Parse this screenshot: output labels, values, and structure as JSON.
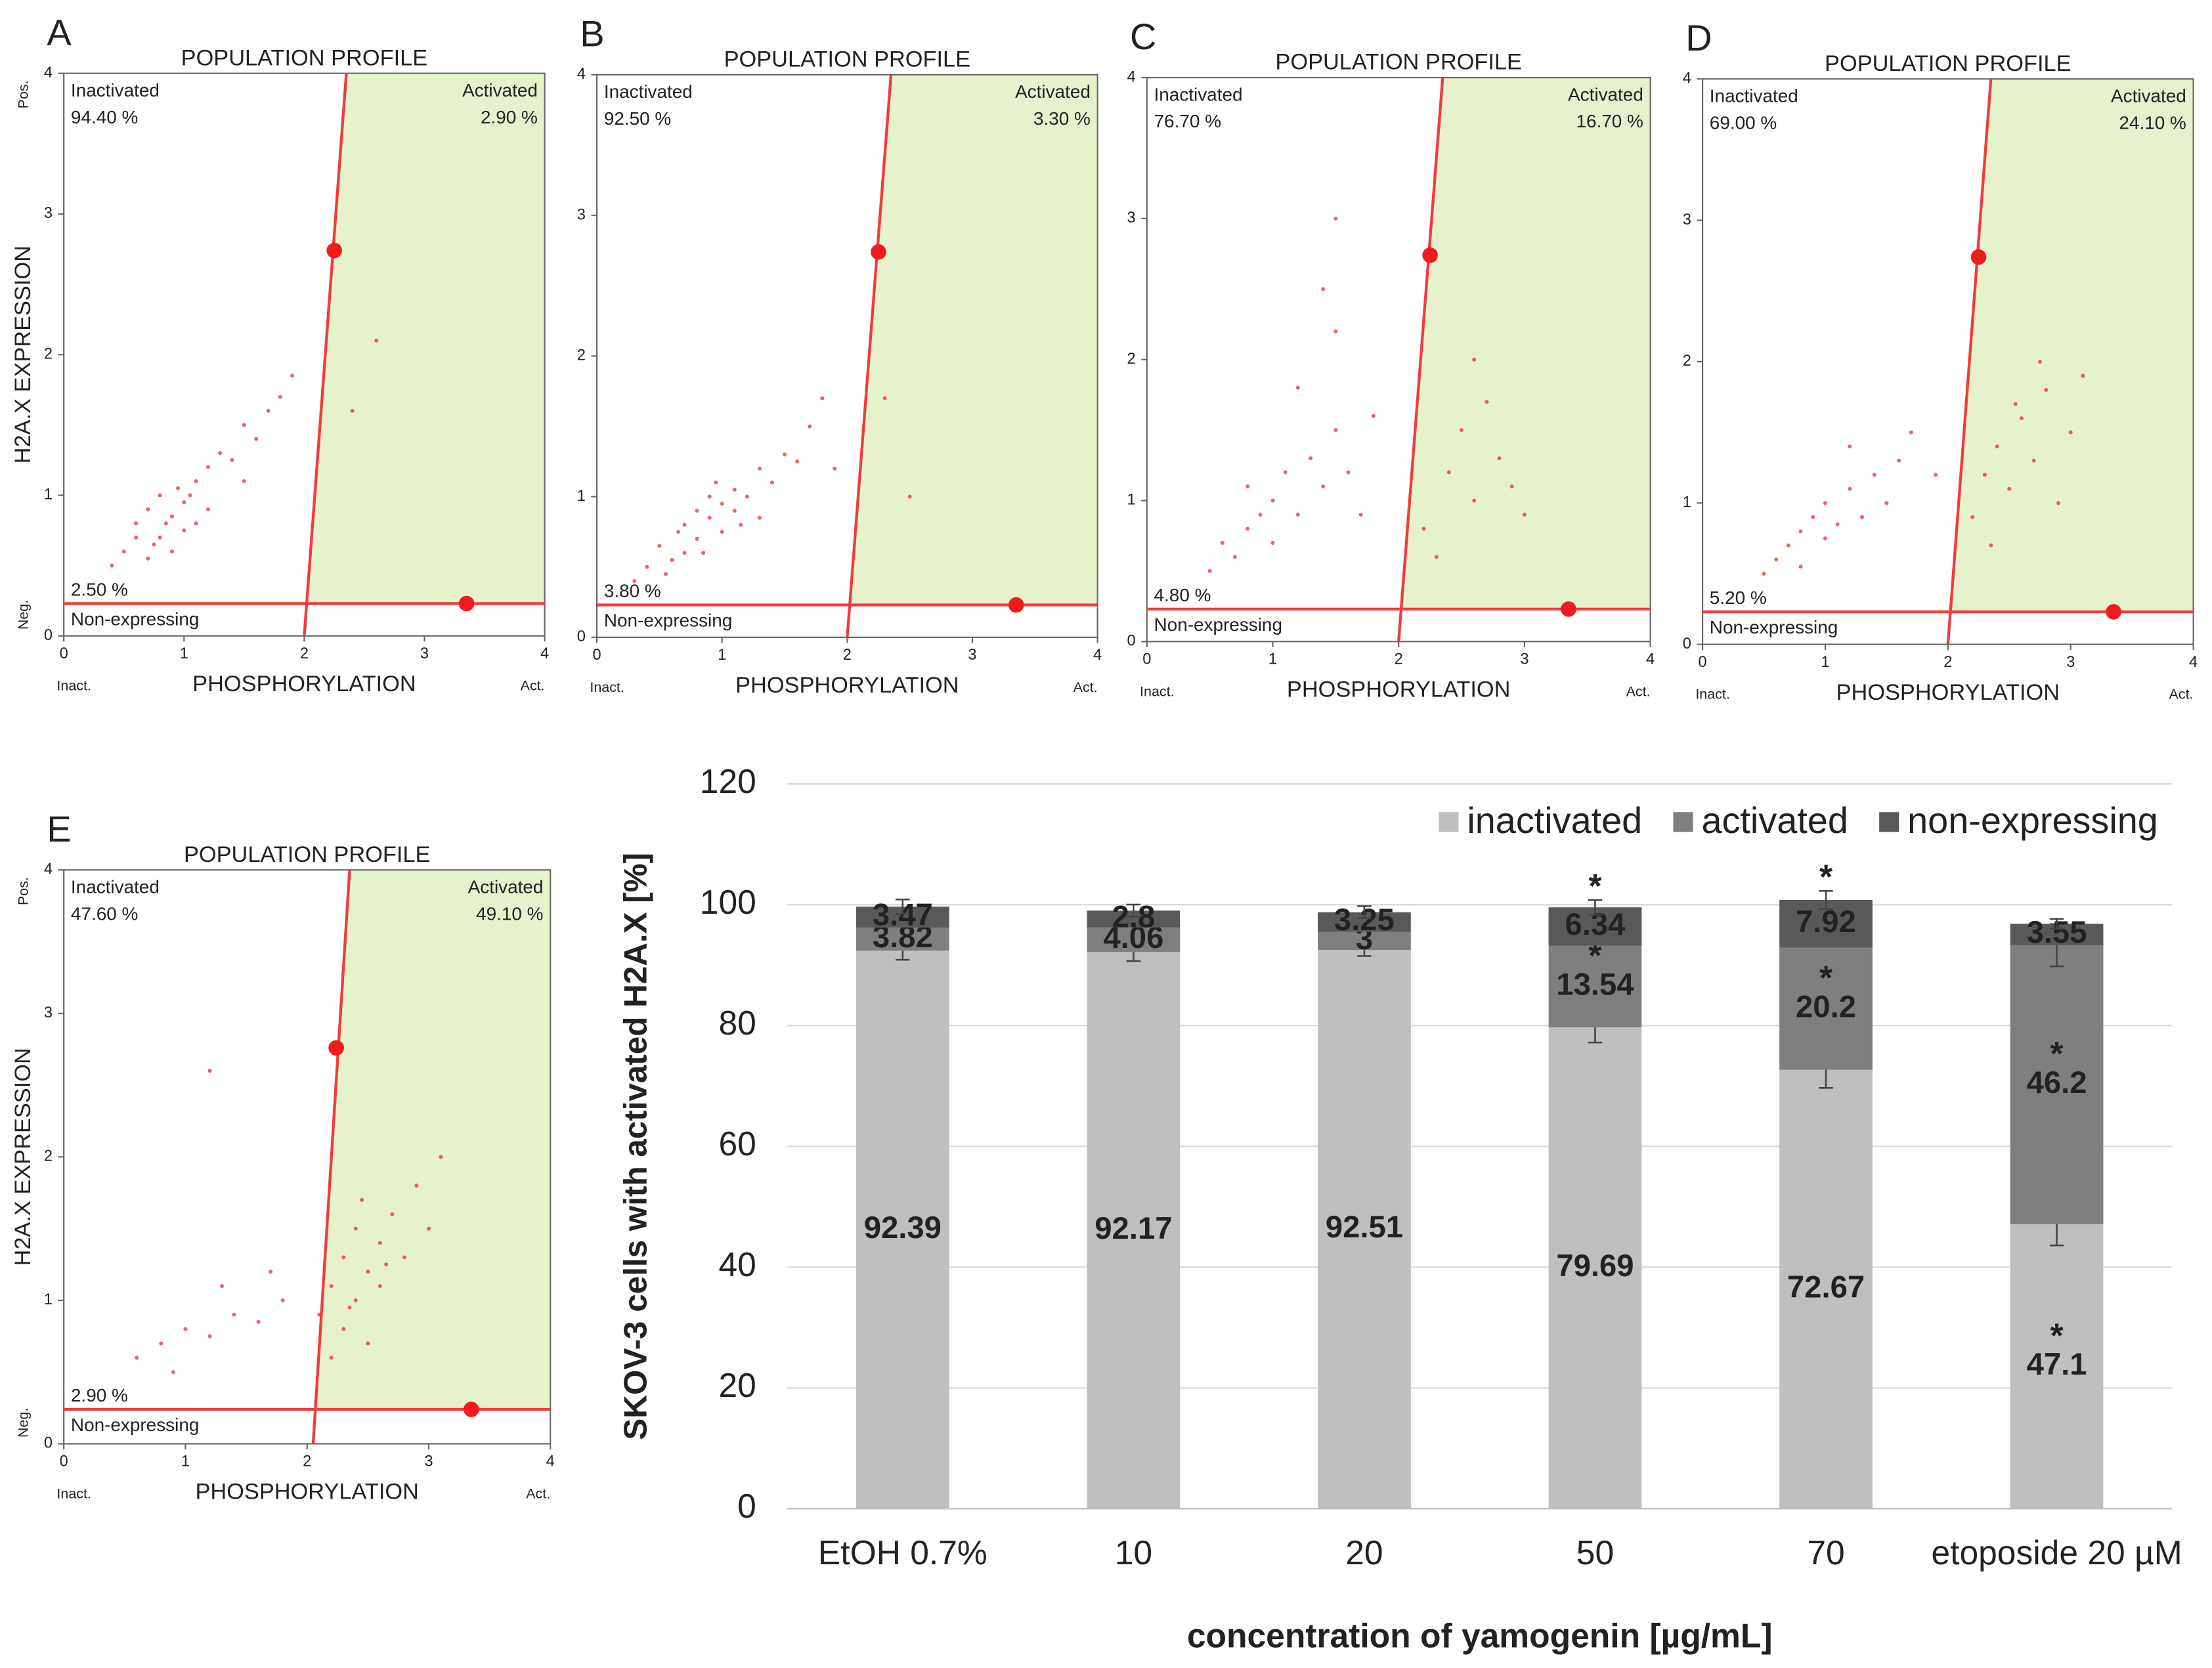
{
  "chart_data": [
    {
      "type": "scatter",
      "panel_label": "A",
      "title": "POPULATION PROFILE",
      "xlabel": "PHOSPHORYLATION",
      "ylabel": "H2A.X EXPRESSION",
      "y_top_label": "Pos.",
      "y_bottom_label": "Neg.",
      "x_left_label": "Inact.",
      "x_right_label": "Act.",
      "annotations": {
        "inactivated": "Inactivated",
        "inactivated_pct": "94.40 %",
        "activated": "Activated",
        "activated_pct": "2.90 %",
        "non_expressing_pct": "2.50 %",
        "non_expressing": "Non-expressing"
      },
      "xlim": [
        0,
        4
      ],
      "ylim": [
        0,
        4
      ],
      "xticks": [
        0,
        1,
        2,
        3,
        4
      ],
      "yticks": [
        0,
        1,
        2,
        3,
        4
      ],
      "color": "#e8202a",
      "x": [
        0.5,
        0.6,
        0.7,
        0.7,
        0.8,
        0.8,
        0.9,
        0.9,
        1.0,
        1.0,
        1.1,
        1.1,
        1.2,
        1.2,
        1.3,
        1.4,
        1.5,
        1.6,
        1.7,
        1.8,
        1.9,
        0.6,
        0.75,
        0.85,
        0.95,
        1.05,
        2.4,
        2.6,
        0.4,
        1.5
      ],
      "y": [
        0.6,
        0.8,
        0.55,
        0.9,
        0.7,
        1.0,
        0.85,
        0.6,
        0.95,
        0.75,
        1.1,
        0.8,
        1.2,
        0.9,
        1.3,
        1.25,
        1.5,
        1.4,
        1.6,
        1.7,
        1.85,
        0.7,
        0.65,
        0.8,
        1.05,
        1.0,
        1.6,
        2.1,
        0.5,
        1.1
      ],
      "gate": {
        "x": [
          2.0,
          2.35
        ],
        "y": [
          0,
          4
        ],
        "threshold": 0.23,
        "handles_x": [
          2.25,
          3.35
        ],
        "handles_y": [
          2.74,
          0.23
        ]
      },
      "gate_color": "#f03c3c",
      "region_color": "#e6f2cc"
    },
    {
      "type": "scatter",
      "panel_label": "B",
      "title": "POPULATION PROFILE",
      "xlabel": "PHOSPHORYLATION",
      "x_left_label": "Inact.",
      "x_right_label": "Act.",
      "annotations": {
        "inactivated": "Inactivated",
        "inactivated_pct": "92.50 %",
        "activated": "Activated",
        "activated_pct": "3.30 %",
        "non_expressing_pct": "3.80 %",
        "non_expressing": "Non-expressing"
      },
      "xlim": [
        0,
        4
      ],
      "ylim": [
        0,
        4
      ],
      "xticks": [
        0,
        1,
        2,
        3,
        4
      ],
      "yticks": [
        0,
        1,
        2,
        3,
        4
      ],
      "color": "#e8202a",
      "x": [
        0.4,
        0.5,
        0.6,
        0.7,
        0.7,
        0.8,
        0.8,
        0.9,
        0.9,
        1.0,
        1.0,
        1.1,
        1.1,
        1.2,
        1.3,
        1.3,
        1.4,
        1.5,
        1.6,
        1.7,
        1.8,
        0.55,
        0.65,
        0.85,
        0.95,
        1.15,
        2.5,
        2.3,
        1.9,
        0.3
      ],
      "y": [
        0.5,
        0.65,
        0.55,
        0.8,
        0.6,
        0.9,
        0.7,
        0.85,
        1.0,
        0.75,
        0.95,
        0.9,
        1.05,
        1.0,
        1.2,
        0.85,
        1.1,
        1.3,
        1.25,
        1.5,
        1.7,
        0.45,
        0.75,
        0.6,
        1.1,
        0.8,
        1.0,
        1.7,
        1.2,
        0.4
      ],
      "gate": {
        "x": [
          2.0,
          2.35
        ],
        "y": [
          0,
          4
        ],
        "threshold": 0.23,
        "handles_x": [
          2.25,
          3.35
        ],
        "handles_y": [
          2.74,
          0.23
        ]
      },
      "gate_color": "#f03c3c",
      "region_color": "#e6f2cc"
    },
    {
      "type": "scatter",
      "panel_label": "C",
      "title": "POPULATION PROFILE",
      "xlabel": "PHOSPHORYLATION",
      "x_left_label": "Inact.",
      "x_right_label": "Act.",
      "annotations": {
        "inactivated": "Inactivated",
        "inactivated_pct": "76.70 %",
        "activated": "Activated",
        "activated_pct": "16.70 %",
        "non_expressing_pct": "4.80 %",
        "non_expressing": "Non-expressing"
      },
      "xlim": [
        0,
        4
      ],
      "ylim": [
        0,
        4
      ],
      "xticks": [
        0,
        1,
        2,
        3,
        4
      ],
      "yticks": [
        0,
        1,
        2,
        3,
        4
      ],
      "color": "#e8202a",
      "x": [
        0.5,
        0.6,
        0.7,
        0.8,
        0.9,
        1.0,
        1.0,
        1.1,
        1.2,
        1.3,
        1.4,
        1.5,
        1.6,
        1.8,
        0.8,
        1.2,
        1.5,
        1.7,
        2.2,
        2.4,
        2.5,
        2.6,
        2.7,
        2.8,
        2.9,
        3.0,
        2.3,
        2.6,
        1.5,
        1.4
      ],
      "y": [
        0.5,
        0.7,
        0.6,
        0.8,
        0.9,
        1.0,
        0.7,
        1.2,
        0.9,
        1.3,
        1.1,
        1.5,
        1.2,
        1.6,
        1.1,
        1.8,
        2.2,
        0.9,
        0.8,
        1.2,
        1.5,
        1.0,
        1.7,
        1.3,
        1.1,
        0.9,
        0.6,
        2.0,
        3.0,
        2.5
      ],
      "gate": {
        "x": [
          2.0,
          2.35
        ],
        "y": [
          0,
          4
        ],
        "threshold": 0.23,
        "handles_x": [
          2.25,
          3.35
        ],
        "handles_y": [
          2.74,
          0.23
        ]
      },
      "gate_color": "#f03c3c",
      "region_color": "#e6f2cc"
    },
    {
      "type": "scatter",
      "panel_label": "D",
      "title": "POPULATION PROFILE",
      "xlabel": "PHOSPHORYLATION",
      "x_left_label": "Inact.",
      "x_right_label": "Act.",
      "annotations": {
        "inactivated": "Inactivated",
        "inactivated_pct": "69.00 %",
        "activated": "Activated",
        "activated_pct": "24.10 %",
        "non_expressing_pct": "5.20 %",
        "non_expressing": "Non-expressing"
      },
      "xlim": [
        0,
        4
      ],
      "ylim": [
        0,
        4
      ],
      "xticks": [
        0,
        1,
        2,
        3,
        4
      ],
      "yticks": [
        0,
        1,
        2,
        3,
        4
      ],
      "color": "#e8202a",
      "x": [
        0.5,
        0.6,
        0.7,
        0.8,
        0.9,
        1.0,
        1.0,
        1.1,
        1.2,
        1.3,
        1.4,
        1.5,
        1.6,
        0.8,
        1.2,
        1.7,
        2.2,
        2.3,
        2.4,
        2.5,
        2.6,
        2.7,
        2.8,
        2.9,
        3.0,
        3.1,
        2.35,
        2.55,
        2.75,
        1.9
      ],
      "y": [
        0.5,
        0.6,
        0.7,
        0.8,
        0.9,
        0.75,
        1.0,
        0.85,
        1.1,
        0.9,
        1.2,
        1.0,
        1.3,
        0.55,
        1.4,
        1.5,
        0.9,
        1.2,
        1.4,
        1.1,
        1.6,
        1.3,
        1.8,
        1.0,
        1.5,
        1.9,
        0.7,
        1.7,
        2.0,
        1.2
      ],
      "gate": {
        "x": [
          2.0,
          2.35
        ],
        "y": [
          0,
          4
        ],
        "threshold": 0.23,
        "handles_x": [
          2.25,
          3.35
        ],
        "handles_y": [
          2.74,
          0.23
        ]
      },
      "gate_color": "#f03c3c",
      "region_color": "#e6f2cc"
    },
    {
      "type": "scatter",
      "panel_label": "E",
      "title": "POPULATION PROFILE",
      "xlabel": "PHOSPHORYLATION",
      "ylabel": "H2A.X EXPRESSION",
      "y_top_label": "Pos.",
      "y_bottom_label": "Neg.",
      "x_left_label": "Inact.",
      "x_right_label": "Act.",
      "annotations": {
        "inactivated": "Inactivated",
        "inactivated_pct": "47.60 %",
        "activated": "Activated",
        "activated_pct": "49.10 %",
        "non_expressing_pct": "2.90 %",
        "non_expressing": "Non-expressing"
      },
      "xlim": [
        0,
        4
      ],
      "ylim": [
        0,
        4
      ],
      "xticks": [
        0,
        1,
        2,
        3,
        4
      ],
      "yticks": [
        0,
        1,
        2,
        3,
        4
      ],
      "color": "#e8202a",
      "x": [
        0.6,
        0.8,
        1.0,
        1.2,
        1.4,
        1.6,
        1.8,
        0.9,
        1.3,
        1.7,
        2.1,
        2.2,
        2.3,
        2.3,
        2.4,
        2.4,
        2.5,
        2.5,
        2.6,
        2.6,
        2.7,
        2.8,
        2.9,
        3.0,
        3.1,
        2.2,
        2.35,
        2.45,
        2.65,
        1.2
      ],
      "y": [
        0.6,
        0.7,
        0.8,
        0.75,
        0.9,
        0.85,
        1.0,
        0.5,
        1.1,
        1.2,
        0.9,
        1.1,
        0.8,
        1.3,
        1.0,
        1.5,
        1.2,
        0.7,
        1.4,
        1.1,
        1.6,
        1.3,
        1.8,
        1.5,
        2.0,
        0.6,
        0.95,
        1.7,
        1.25,
        2.6
      ],
      "gate": {
        "x": [
          2.05,
          2.35
        ],
        "y": [
          0,
          4
        ],
        "threshold": 0.24,
        "handles_x": [
          2.24,
          3.35
        ],
        "handles_y": [
          2.76,
          0.24
        ]
      },
      "gate_color": "#f03c3c",
      "region_color": "#e6f2cc"
    },
    {
      "type": "stacked_bar",
      "ylabel": "SKOV-3 cells with activated H2A.X  [%]",
      "xlabel": "concentration of yamogenin [µg/mL]",
      "categories": [
        "EtOH 0.7%",
        "10",
        "20",
        "50",
        "70",
        "etoposide 20 µM"
      ],
      "series": [
        {
          "name": "inactivated",
          "color": "#bfbfbf",
          "label_color": "#000000",
          "values": [
            92.39,
            92.17,
            92.51,
            79.69,
            72.67,
            47.1
          ],
          "errors": [
            1.5,
            1.5,
            1,
            2.5,
            3,
            3.5
          ],
          "significance": [
            null,
            null,
            null,
            null,
            null,
            "*"
          ]
        },
        {
          "name": "activated",
          "color": "#7f7f7f",
          "label_color": "#ffffff",
          "values": [
            3.82,
            4.06,
            3,
            13.54,
            20.2,
            46.2
          ],
          "errors": [
            null,
            null,
            null,
            null,
            null,
            3.5
          ],
          "significance": [
            null,
            null,
            null,
            "*",
            "*",
            "*"
          ]
        },
        {
          "name": "non-expressing",
          "color": "#595959",
          "label_color": "#ffffff",
          "values": [
            3.47,
            2.8,
            3.25,
            6.34,
            7.92,
            3.55
          ],
          "errors": [
            1.2,
            1,
            1,
            1.2,
            1.5,
            0.8
          ],
          "significance": [
            null,
            null,
            null,
            "*",
            "*",
            null
          ]
        }
      ],
      "ylim": [
        0,
        120
      ],
      "yticks": [
        0,
        20,
        40,
        60,
        80,
        100,
        120
      ],
      "grid": true,
      "legend": "top-right"
    }
  ]
}
